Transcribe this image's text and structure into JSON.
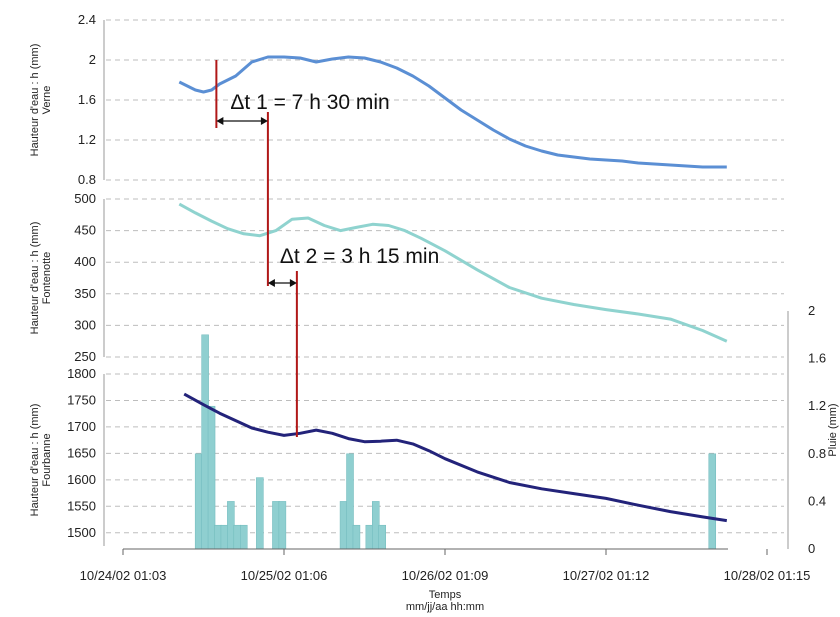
{
  "chart_data": {
    "type": "line",
    "x_ticks": [
      "10/24/02 01:03",
      "10/25/02 01:06",
      "10/26/02 01:09",
      "10/27/02 01:12",
      "10/28/02 01:15"
    ],
    "xlabel": "Temps",
    "xlabel_sub": "mm/jj/aa hh:mm",
    "panels": [
      {
        "name": "verne",
        "ylabel": "Hauteur d'eau : h (mm)",
        "ylabel_sub": "Verne",
        "ylim": [
          0.8,
          2.4
        ],
        "yticks": [
          "0.8",
          "1.2",
          "1.6",
          "2",
          "2.4"
        ],
        "color": "#5b8fd4",
        "series": [
          {
            "x": [
              0.35,
              0.45,
              0.5,
              0.55,
              0.6,
              0.7,
              0.8,
              0.9,
              1.0,
              1.1,
              1.2,
              1.3,
              1.4,
              1.5,
              1.6,
              1.7,
              1.8,
              1.9,
              2.0,
              2.1,
              2.2,
              2.3,
              2.4,
              2.5,
              2.6,
              2.7,
              2.8,
              2.9,
              3.0,
              3.1,
              3.2,
              3.3,
              3.4,
              3.5,
              3.6,
              3.75
            ],
            "y": [
              1.78,
              1.7,
              1.68,
              1.7,
              1.76,
              1.84,
              1.98,
              2.03,
              2.03,
              2.02,
              1.98,
              2.01,
              2.03,
              2.02,
              1.98,
              1.92,
              1.84,
              1.74,
              1.62,
              1.5,
              1.4,
              1.3,
              1.21,
              1.14,
              1.09,
              1.05,
              1.03,
              1.01,
              1.0,
              0.99,
              0.97,
              0.96,
              0.95,
              0.94,
              0.93,
              0.93
            ]
          }
        ]
      },
      {
        "name": "fontenotte",
        "ylabel": "Hauteur d'eau : h (mm)",
        "ylabel_sub": "Fontenotte",
        "ylim": [
          250,
          500
        ],
        "yticks": [
          "250",
          "300",
          "350",
          "400",
          "450",
          "500"
        ],
        "color": "#8fd3cf",
        "series": [
          {
            "x": [
              0.35,
              0.45,
              0.55,
              0.65,
              0.75,
              0.85,
              0.95,
              1.05,
              1.15,
              1.25,
              1.35,
              1.45,
              1.55,
              1.65,
              1.75,
              1.85,
              2.0,
              2.2,
              2.4,
              2.6,
              2.8,
              3.0,
              3.2,
              3.4,
              3.6,
              3.75
            ],
            "y": [
              492,
              478,
              465,
              453,
              445,
              442,
              450,
              468,
              470,
              458,
              450,
              455,
              460,
              458,
              450,
              438,
              418,
              388,
              360,
              343,
              333,
              325,
              318,
              310,
              292,
              275
            ]
          }
        ]
      },
      {
        "name": "fourbanne",
        "ylabel": "Hauteur d'eau : h (mm)",
        "ylabel_sub": "Fourbanne",
        "ylim": [
          1475,
          1800
        ],
        "yticks": [
          "1500",
          "1550",
          "1600",
          "1650",
          "1700",
          "1750",
          "1800"
        ],
        "color": "#23237a",
        "series": [
          {
            "x": [
              0.38,
              0.5,
              0.6,
              0.7,
              0.8,
              0.9,
              1.0,
              1.1,
              1.2,
              1.3,
              1.4,
              1.5,
              1.6,
              1.7,
              1.8,
              1.9,
              2.0,
              2.2,
              2.4,
              2.6,
              2.8,
              3.0,
              3.2,
              3.4,
              3.6,
              3.75
            ],
            "y": [
              1762,
              1742,
              1726,
              1712,
              1698,
              1690,
              1684,
              1688,
              1694,
              1688,
              1678,
              1672,
              1673,
              1675,
              1668,
              1655,
              1640,
              1615,
              1595,
              1583,
              1574,
              1565,
              1552,
              1540,
              1530,
              1523
            ]
          }
        ]
      }
    ],
    "rain": {
      "ylabel": "Pluie (mm)",
      "ylim": [
        0,
        2
      ],
      "yticks": [
        "0",
        "0.4",
        "0.8",
        "1.2",
        "1.6",
        "2"
      ],
      "color": "#8fcfd0",
      "bars": [
        {
          "x": 0.47,
          "y": 0.8
        },
        {
          "x": 0.51,
          "y": 1.8
        },
        {
          "x": 0.55,
          "y": 1.2
        },
        {
          "x": 0.59,
          "y": 0.2
        },
        {
          "x": 0.63,
          "y": 0.2
        },
        {
          "x": 0.67,
          "y": 0.4
        },
        {
          "x": 0.71,
          "y": 0.2
        },
        {
          "x": 0.75,
          "y": 0.2
        },
        {
          "x": 0.85,
          "y": 0.6
        },
        {
          "x": 0.95,
          "y": 0.4
        },
        {
          "x": 0.99,
          "y": 0.4
        },
        {
          "x": 1.37,
          "y": 0.4
        },
        {
          "x": 1.41,
          "y": 0.8
        },
        {
          "x": 1.45,
          "y": 0.2
        },
        {
          "x": 1.53,
          "y": 0.2
        },
        {
          "x": 1.57,
          "y": 0.4
        },
        {
          "x": 1.61,
          "y": 0.2
        },
        {
          "x": 3.66,
          "y": 0.8
        }
      ]
    },
    "annotations": [
      {
        "text": "Δt 1 = 7 h 30 min",
        "from": 0.58,
        "to": 0.9
      },
      {
        "text": "Δt 2 = 3 h 15 min",
        "from": 0.9,
        "to": 1.08
      }
    ],
    "grid": true
  }
}
